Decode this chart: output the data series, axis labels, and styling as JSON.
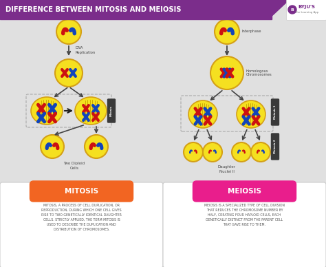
{
  "title": "DIFFERENCE BETWEEN MITOSIS AND MEIOSIS",
  "title_bg": "#7B2D8B",
  "title_color": "#FFFFFF",
  "bg_color": "#E0E0E0",
  "mitosis_label": "MITOSIS",
  "meiosis_label": "MEIOSIS",
  "mitosis_color": "#F26522",
  "meiosis_color": "#E91E8C",
  "mitosis_text": "MITOSIS, A PROCESS OF CELL DUPLICATION, OR\nREPRODUCTION, DURING WHICH ONE CELL GIVES\nRISE TO TWO GENETICALLY IDENTICAL DAUGHTER\nCELLS. STRICTLY APPLIED, THE TERM MITOSIS IS\nUSED TO DESCRIBE THE DUPLICATION AND\nDISTRIBUTION OF CHROMOSOMES.",
  "meiosis_text": "MEIOSIS IS A SPECIALIZED TYPE OF CELL DIVISION\nTHAT REDUCES THE CHROMOSOME NUMBER BY\nHALF, CREATING FOUR HAPLOID CELLS, EACH\nGENETICALLY DISTINCT FROM THE PARENT CELL\nTHAT GAVE RISE TO THEM.",
  "text_color": "#555555",
  "dna_label": "DNA\nReplication",
  "interphase_label": "Interphase",
  "homologous_label": "Homologous\nChromosomes",
  "two_diploid_label": "Two Diploid\nCells",
  "daughter_label": "Daughter\nNuclei II",
  "cell_fill": "#F5E020",
  "cell_outline": "#D4A017",
  "arrow_color": "#444444",
  "mitosis_tag": "Mitosis",
  "meiosis1_tag": "Meiosis 1",
  "meiosis2_tag": "Meiosis 2",
  "tag_bg": "#3A3A3A",
  "red_chr": "#CC1111",
  "blue_chr": "#1144BB",
  "spindle_line": "#C8A000",
  "dashed_box_color": "#AAAAAA",
  "byju_purple": "#7B2D8B"
}
